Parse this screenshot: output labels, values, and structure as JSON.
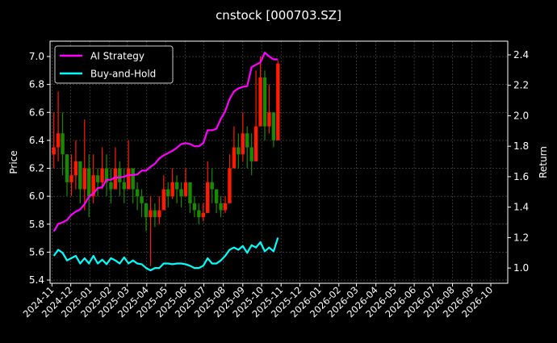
{
  "chart_data": {
    "type": "candlestick+line",
    "title": "cnstock [000703.SZ]",
    "ylabel_left": "Price",
    "ylabel_right": "Return",
    "ylim_left": [
      5.377,
      7.11
    ],
    "ylim_right": [
      0.9,
      2.49
    ],
    "xlim": [
      "2024-10-29",
      "2026-10-28"
    ],
    "grid": true,
    "legend_placement": "upper-left",
    "y_ticks_left": [
      "5.4",
      "5.6",
      "5.8",
      "6.0",
      "6.2",
      "6.4",
      "6.6",
      "6.8",
      "7.0"
    ],
    "y_ticks_right": [
      "1.0",
      "1.2",
      "1.4",
      "1.6",
      "1.8",
      "2.0",
      "2.2",
      "2.4"
    ],
    "x_ticks": [
      "2024-11",
      "2024-12",
      "2025-01",
      "2025-02",
      "2025-03",
      "2025-04",
      "2025-05",
      "2025-06",
      "2025-07",
      "2025-08",
      "2025-09",
      "2025-10",
      "2025-11",
      "2025-12",
      "2026-01",
      "2026-02",
      "2026-03",
      "2026-04",
      "2026-05",
      "2026-06",
      "2026-07",
      "2026-08",
      "2026-09",
      "2026-10"
    ],
    "start_date": "2024-11-04",
    "interval_days": 7,
    "price": {
      "high": [
        6.6,
        6.75,
        6.6,
        6.3,
        6.3,
        6.4,
        6.2,
        6.55,
        6.3,
        6.3,
        6.2,
        6.35,
        6.3,
        6.2,
        6.35,
        6.25,
        6.2,
        6.4,
        6.2,
        6.1,
        6.05,
        5.95,
        6.0,
        5.95,
        6.0,
        6.15,
        6.1,
        6.2,
        6.15,
        6.1,
        6.2,
        6.05,
        6.0,
        5.95,
        5.95,
        6.25,
        6.2,
        6.05,
        6.0,
        6.0,
        6.3,
        6.5,
        6.45,
        6.6,
        6.5,
        6.45,
        6.9,
        7.0,
        6.9,
        6.8,
        6.6,
        6.97
      ],
      "low": [
        6.2,
        6.25,
        6.15,
        6.0,
        6.0,
        6.05,
        5.95,
        5.9,
        5.85,
        5.95,
        6.0,
        6.05,
        6.0,
        5.95,
        6.05,
        6.0,
        5.95,
        6.05,
        5.95,
        5.9,
        5.85,
        5.75,
        5.5,
        5.78,
        5.8,
        5.95,
        5.92,
        5.98,
        5.95,
        5.92,
        6.0,
        5.88,
        5.85,
        5.8,
        5.82,
        5.95,
        5.95,
        5.88,
        5.85,
        5.88,
        6.0,
        6.2,
        6.2,
        6.25,
        6.2,
        6.15,
        6.3,
        6.5,
        6.4,
        6.45,
        6.35,
        6.45
      ],
      "close": [
        6.35,
        6.45,
        6.3,
        6.1,
        6.15,
        6.25,
        6.05,
        6.2,
        6.0,
        6.15,
        6.1,
        6.2,
        6.1,
        6.05,
        6.2,
        6.1,
        6.05,
        6.2,
        6.05,
        6.0,
        5.95,
        5.85,
        5.9,
        5.85,
        5.9,
        6.05,
        6.0,
        6.1,
        6.05,
        6.0,
        6.1,
        5.95,
        5.9,
        5.85,
        5.88,
        6.1,
        6.05,
        5.95,
        5.9,
        5.95,
        6.2,
        6.35,
        6.3,
        6.45,
        6.35,
        6.25,
        6.5,
        6.85,
        6.5,
        6.6,
        6.4,
        6.95
      ],
      "open_first": 6.3,
      "up_color": "#ff1a00",
      "down_color": "#1a8a00"
    },
    "series": [
      {
        "name": "AI Strategy",
        "color": "#ff00ff",
        "values": [
          1.24,
          1.29,
          1.3,
          1.315,
          1.35,
          1.37,
          1.385,
          1.42,
          1.47,
          1.49,
          1.525,
          1.53,
          1.58,
          1.58,
          1.595,
          1.595,
          1.6,
          1.61,
          1.61,
          1.615,
          1.64,
          1.64,
          1.665,
          1.685,
          1.72,
          1.74,
          1.755,
          1.77,
          1.79,
          1.815,
          1.82,
          1.815,
          1.8,
          1.8,
          1.82,
          1.905,
          1.905,
          1.915,
          1.98,
          2.03,
          2.11,
          2.16,
          2.18,
          2.19,
          2.195,
          2.32,
          2.335,
          2.35,
          2.415,
          2.39,
          2.37,
          2.37
        ]
      },
      {
        "name": "Buy-and-Hold",
        "color": "#00ffff",
        "values": [
          1.08,
          1.12,
          1.1,
          1.05,
          1.065,
          1.08,
          1.03,
          1.065,
          1.03,
          1.08,
          1.03,
          1.055,
          1.025,
          1.065,
          1.05,
          1.03,
          1.07,
          1.03,
          1.05,
          1.03,
          1.025,
          1.0,
          0.985,
          1.0,
          1.0,
          1.03,
          1.03,
          1.025,
          1.03,
          1.03,
          1.025,
          1.015,
          1.0,
          1.0,
          1.015,
          1.065,
          1.03,
          1.03,
          1.05,
          1.08,
          1.12,
          1.135,
          1.12,
          1.145,
          1.1,
          1.15,
          1.135,
          1.17,
          1.11,
          1.135,
          1.11,
          1.2
        ]
      }
    ]
  }
}
